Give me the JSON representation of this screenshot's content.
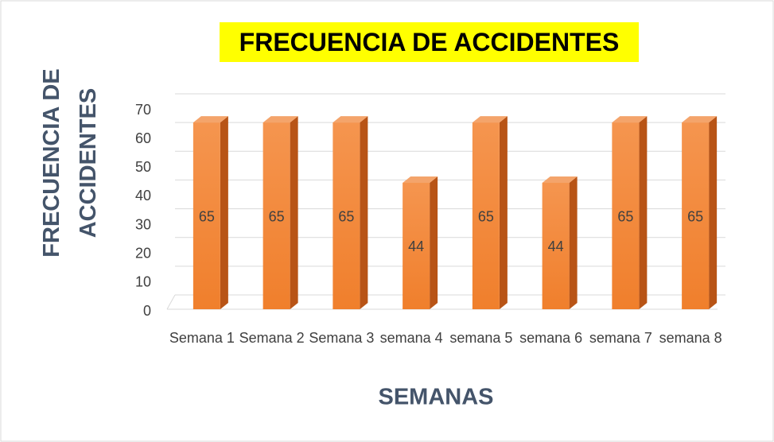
{
  "chart_data": {
    "type": "bar3d",
    "title": "FRECUENCIA DE ACCIDENTES",
    "x_label": "SEMANAS",
    "y_label": "FRECUENCIA DE ACCIDENTES",
    "categories": [
      "Semana 1",
      "Semana 2",
      "Semana 3",
      "semana 4",
      "semana 5",
      "semana 6",
      "semana 7",
      "semana 8"
    ],
    "values": [
      65,
      65,
      65,
      44,
      65,
      44,
      65,
      65
    ],
    "color": "#f07f2c",
    "ylim": [
      0,
      70
    ],
    "yticks": [
      0,
      10,
      20,
      30,
      40,
      50,
      60,
      70
    ],
    "grid": true
  }
}
